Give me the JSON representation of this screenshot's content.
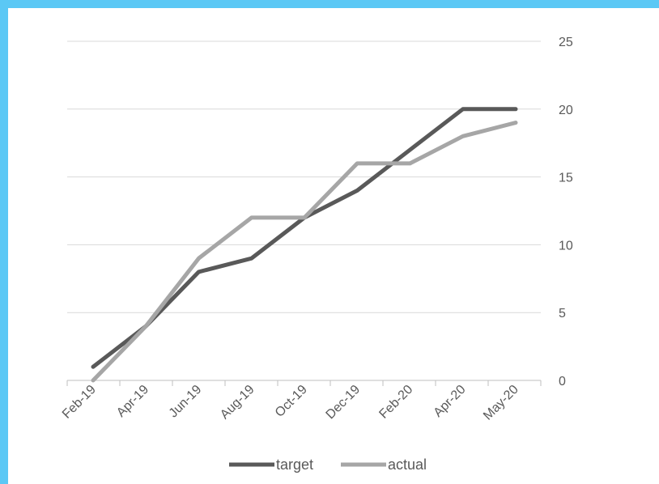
{
  "chart_data": {
    "type": "line",
    "title": "",
    "xlabel": "",
    "ylabel": "",
    "categories": [
      "Feb-19",
      "Apr-19",
      "Jun-19",
      "Aug-19",
      "Oct-19",
      "Dec-19",
      "Feb-20",
      "Apr-20",
      "May-20"
    ],
    "y_ticks": [
      "0",
      "5",
      "10",
      "15",
      "20",
      "25"
    ],
    "ylim": [
      0,
      25
    ],
    "y_axis_side": "right",
    "grid": true,
    "legend": "bottom",
    "series": [
      {
        "name": "target",
        "color": "#595959",
        "values": [
          1,
          4,
          8,
          9,
          12,
          14,
          17,
          20,
          20
        ]
      },
      {
        "name": "actual",
        "color": "#a6a6a6",
        "values": [
          0,
          4,
          9,
          12,
          12,
          16,
          16,
          18,
          19
        ]
      }
    ]
  }
}
